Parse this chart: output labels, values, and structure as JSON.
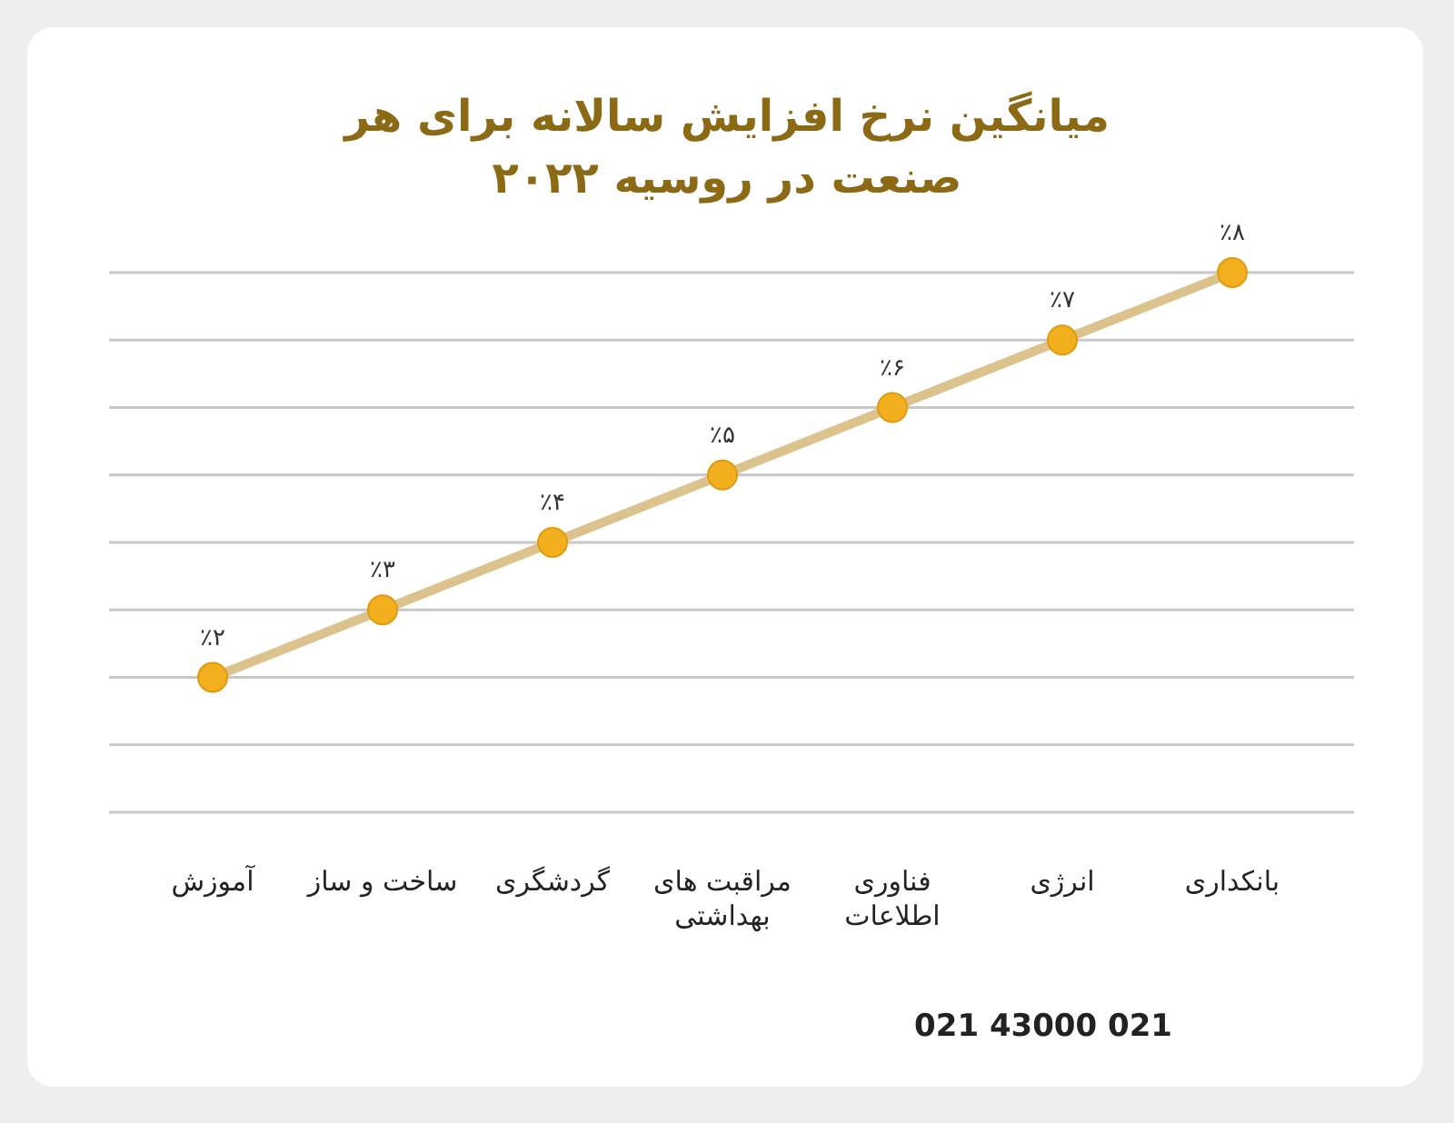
{
  "chart_data": {
    "type": "line",
    "title": "میانگین نرخ افزایش سالانه برای هر صنعت در روسیه ۲۰۲۲",
    "categories": [
      "آموزش",
      "ساخت و ساز",
      "گردشگری",
      "مراقبت های بهداشتی",
      "فناوری اطلاعات",
      "انرژی",
      "بانکداری"
    ],
    "series": [
      {
        "color": "#dcc38e",
        "values": [
          2,
          3,
          4,
          5,
          6,
          7,
          8
        ],
        "colors": [
          "#f2b01e",
          "#f2b01e",
          "#f2b01e",
          "#f2b01e",
          "#f2b01e",
          "#f2b01e",
          "#f2b01e"
        ],
        "value_labels": [
          "٪۲",
          "٪۳",
          "٪۴",
          "٪۵",
          "٪۶",
          "٪۷",
          "٪۸"
        ]
      }
    ],
    "marker": "circle",
    "ylim": [
      0,
      8
    ],
    "yticks": [
      {
        "value": 0,
        "label": null
      },
      {
        "value": 1,
        "label": null
      },
      {
        "value": 2,
        "label": null
      },
      {
        "value": 3,
        "label": null
      },
      {
        "value": 4,
        "label": null
      },
      {
        "value": 5,
        "label": null
      },
      {
        "value": 6,
        "label": null
      },
      {
        "value": 7,
        "label": null
      },
      {
        "value": 8,
        "label": null
      }
    ],
    "grid": "y",
    "annotations": [
      "021 43000 021"
    ]
  }
}
